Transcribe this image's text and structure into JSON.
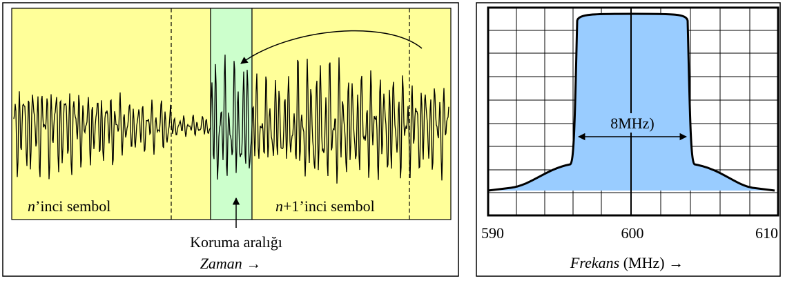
{
  "left_panel": {
    "symbol_n_italic": "n",
    "symbol_n_rest": "’inci sembol",
    "symbol_n1_italic": "n",
    "symbol_n1_rest": "+1’inci sembol",
    "guard_label": "Koruma aralığı",
    "axis_italic": "Zaman",
    "axis_arrow": "→"
  },
  "right_panel": {
    "tick_labels": [
      "590",
      "600",
      "610"
    ],
    "bandwidth_label": "8MHz)",
    "axis_italic": "Frekans",
    "axis_rest": " (MHz)",
    "axis_arrow": "→"
  },
  "colors": {
    "symbol_bg": "#ffff99",
    "guard_bg": "#ccffcc",
    "spectrum_fill": "#99ccff",
    "stroke": "#000000"
  },
  "icons": [
    "right-arrow-icon",
    "up-arrow-icon",
    "double-headed-arrow-icon"
  ]
}
